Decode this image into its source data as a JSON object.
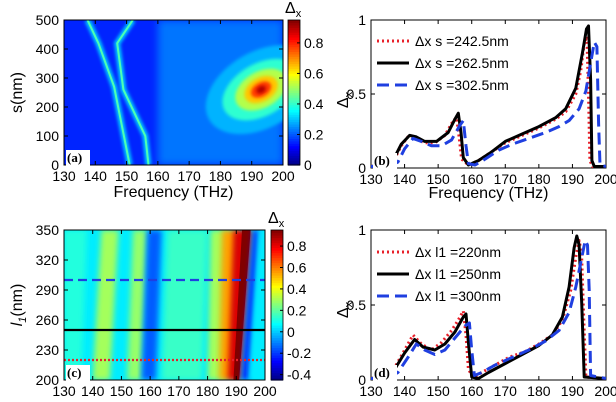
{
  "chart_data": [
    {
      "panel": "(a)",
      "type": "heatmap",
      "xlabel": "Frequency (THz)",
      "ylabel": "s(nm)",
      "xlim": [
        130,
        200
      ],
      "ylim": [
        0,
        500
      ],
      "xticks": [
        130,
        140,
        150,
        160,
        170,
        180,
        190,
        200
      ],
      "yticks": [
        0,
        100,
        200,
        300,
        400,
        500
      ],
      "colorbar": {
        "label": "Δx",
        "range": [
          0,
          0.95
        ],
        "ticks": [
          0,
          0.2,
          0.4,
          0.6,
          0.8
        ]
      },
      "features": [
        {
          "kind": "ridge",
          "points": [
            [
              137.5,
              500
            ],
            [
              141,
              420
            ],
            [
              146,
              270
            ],
            [
              151,
              0
            ]
          ]
        },
        {
          "kind": "ridge",
          "points": [
            [
              152,
              500
            ],
            [
              147,
              420
            ],
            [
              149,
              260
            ],
            [
              156,
              100
            ],
            [
              157,
              0
            ]
          ]
        },
        {
          "kind": "peak",
          "x": 193,
          "y": 260,
          "value": 0.92
        }
      ],
      "colormap": "jet",
      "grid": false
    },
    {
      "panel": "(b)",
      "type": "line",
      "xlabel": "Frequency (THz)",
      "ylabel": "Δx",
      "xlim": [
        130,
        200
      ],
      "ylim": [
        0,
        1
      ],
      "xticks": [
        130,
        140,
        150,
        160,
        170,
        180,
        190,
        200
      ],
      "yticks": [
        0,
        0.5,
        1
      ],
      "legend_position": "top-left",
      "series": [
        {
          "name": "Δx  s =242.5nm",
          "color": "#e8202a",
          "dash": "dotted",
          "points": [
            [
              130,
              0.01
            ],
            [
              134,
              0.02
            ],
            [
              137,
              0.06
            ],
            [
              139,
              0.15
            ],
            [
              141,
              0.21
            ],
            [
              143,
              0.2
            ],
            [
              146,
              0.17
            ],
            [
              149,
              0.17
            ],
            [
              152,
              0.22
            ],
            [
              154.5,
              0.32
            ],
            [
              155.5,
              0.34
            ],
            [
              156.3,
              0.2
            ],
            [
              157,
              0.06
            ],
            [
              159,
              0.02
            ],
            [
              162,
              0.05
            ],
            [
              166,
              0.11
            ],
            [
              170,
              0.17
            ],
            [
              175,
              0.22
            ],
            [
              180,
              0.27
            ],
            [
              185,
              0.33
            ],
            [
              188,
              0.38
            ],
            [
              191,
              0.5
            ],
            [
              192.5,
              0.66
            ],
            [
              193.5,
              0.84
            ],
            [
              194.3,
              0.89
            ],
            [
              194.8,
              0.5
            ],
            [
              195.2,
              0.05
            ],
            [
              196,
              0.01
            ],
            [
              200,
              0.01
            ]
          ]
        },
        {
          "name": "Δx  s =262.5nm",
          "color": "#000000",
          "dash": "solid",
          "points": [
            [
              130,
              0.01
            ],
            [
              134,
              0.02
            ],
            [
              137,
              0.07
            ],
            [
              139,
              0.16
            ],
            [
              141.5,
              0.22
            ],
            [
              143.5,
              0.21
            ],
            [
              146,
              0.18
            ],
            [
              149.5,
              0.18
            ],
            [
              153,
              0.24
            ],
            [
              155,
              0.33
            ],
            [
              156,
              0.37
            ],
            [
              156.8,
              0.24
            ],
            [
              157.5,
              0.07
            ],
            [
              159,
              0.02
            ],
            [
              162,
              0.05
            ],
            [
              166,
              0.11
            ],
            [
              170,
              0.18
            ],
            [
              175,
              0.23
            ],
            [
              180,
              0.28
            ],
            [
              185,
              0.34
            ],
            [
              188,
              0.4
            ],
            [
              191,
              0.54
            ],
            [
              193,
              0.78
            ],
            [
              194.2,
              0.94
            ],
            [
              194.8,
              0.96
            ],
            [
              195.4,
              0.6
            ],
            [
              195.8,
              0.05
            ],
            [
              196.5,
              0.01
            ],
            [
              200,
              0.01
            ]
          ]
        },
        {
          "name": "Δx  s =302.5nm",
          "color": "#1f3fe0",
          "dash": "dashed",
          "points": [
            [
              130,
              0.01
            ],
            [
              135,
              0.01
            ],
            [
              138,
              0.04
            ],
            [
              140,
              0.13
            ],
            [
              142.5,
              0.2
            ],
            [
              145,
              0.18
            ],
            [
              148,
              0.15
            ],
            [
              151,
              0.15
            ],
            [
              154,
              0.19
            ],
            [
              156.5,
              0.29
            ],
            [
              157.5,
              0.32
            ],
            [
              158.3,
              0.15
            ],
            [
              159,
              0.03
            ],
            [
              161,
              0.02
            ],
            [
              164,
              0.06
            ],
            [
              168,
              0.12
            ],
            [
              172,
              0.16
            ],
            [
              177,
              0.2
            ],
            [
              182,
              0.24
            ],
            [
              186,
              0.28
            ],
            [
              189,
              0.32
            ],
            [
              192,
              0.4
            ],
            [
              194,
              0.52
            ],
            [
              195.5,
              0.72
            ],
            [
              196.5,
              0.85
            ],
            [
              197.3,
              0.82
            ],
            [
              197.8,
              0.3
            ],
            [
              198.2,
              0.02
            ],
            [
              200,
              0.01
            ]
          ]
        }
      ],
      "grid": false
    },
    {
      "panel": "(c)",
      "type": "heatmap",
      "xlabel": "",
      "ylabel": "l1(nm)",
      "xlim": [
        130,
        200
      ],
      "ylim": [
        200,
        350
      ],
      "xticks": [
        130,
        140,
        150,
        160,
        170,
        180,
        190,
        200
      ],
      "yticks": [
        200,
        230,
        260,
        290,
        320,
        350
      ],
      "colorbar": {
        "label": "Δx",
        "range": [
          -0.45,
          0.95
        ],
        "ticks": [
          -0.4,
          -0.2,
          0,
          0.2,
          0.4,
          0.6,
          0.8
        ]
      },
      "hlines": [
        {
          "y": 300,
          "color": "#1f3fe0",
          "dash": "dashed"
        },
        {
          "y": 250,
          "color": "#000000",
          "dash": "solid"
        },
        {
          "y": 220,
          "color": "#e8202a",
          "dash": "dotted"
        }
      ],
      "colormap": "jet",
      "grid": false
    },
    {
      "panel": "(d)",
      "type": "line",
      "xlabel": "",
      "ylabel": "Δx",
      "xlim": [
        130,
        200
      ],
      "ylim": [
        0,
        1
      ],
      "xticks": [
        130,
        140,
        150,
        160,
        170,
        180,
        190,
        200
      ],
      "yticks": [
        0,
        0.5,
        1
      ],
      "legend_position": "top-left",
      "series": [
        {
          "name": "Δx  l1 =220nm",
          "color": "#e8202a",
          "dash": "dotted",
          "points": [
            [
              130,
              0.01
            ],
            [
              134,
              0.02
            ],
            [
              137,
              0.08
            ],
            [
              140,
              0.2
            ],
            [
              142.5,
              0.3
            ],
            [
              145,
              0.24
            ],
            [
              148,
              0.2
            ],
            [
              151,
              0.25
            ],
            [
              154,
              0.33
            ],
            [
              156,
              0.4
            ],
            [
              157.5,
              0.46
            ],
            [
              158.3,
              0.3
            ],
            [
              159,
              0.07
            ],
            [
              160.5,
              0.02
            ],
            [
              163,
              0.05
            ],
            [
              167,
              0.1
            ],
            [
              171,
              0.15
            ],
            [
              176,
              0.19
            ],
            [
              180,
              0.24
            ],
            [
              184,
              0.3
            ],
            [
              187,
              0.4
            ],
            [
              189.5,
              0.6
            ],
            [
              191,
              0.82
            ],
            [
              192,
              0.93
            ],
            [
              192.7,
              0.85
            ],
            [
              193.4,
              0.4
            ],
            [
              194,
              0.02
            ],
            [
              200,
              0.01
            ]
          ]
        },
        {
          "name": "Δx  l1 =250nm",
          "color": "#000000",
          "dash": "solid",
          "points": [
            [
              130,
              0.01
            ],
            [
              134,
              0.02
            ],
            [
              137,
              0.07
            ],
            [
              140,
              0.18
            ],
            [
              143,
              0.27
            ],
            [
              145.5,
              0.22
            ],
            [
              149,
              0.2
            ],
            [
              152,
              0.24
            ],
            [
              155,
              0.32
            ],
            [
              157.5,
              0.42
            ],
            [
              158.3,
              0.44
            ],
            [
              159,
              0.25
            ],
            [
              160,
              0.02
            ],
            [
              162,
              0.01
            ],
            [
              165,
              0.05
            ],
            [
              170,
              0.11
            ],
            [
              175,
              0.17
            ],
            [
              180,
              0.23
            ],
            [
              184,
              0.3
            ],
            [
              187,
              0.42
            ],
            [
              189,
              0.62
            ],
            [
              190.5,
              0.88
            ],
            [
              191.3,
              0.96
            ],
            [
              192,
              0.9
            ],
            [
              192.8,
              0.5
            ],
            [
              193.5,
              0.02
            ],
            [
              200,
              0.01
            ]
          ]
        },
        {
          "name": "Δx  l1 =300nm",
          "color": "#1f3fe0",
          "dash": "dashed",
          "points": [
            [
              130,
              0.01
            ],
            [
              135,
              0.01
            ],
            [
              138,
              0.05
            ],
            [
              141,
              0.15
            ],
            [
              143.5,
              0.24
            ],
            [
              146,
              0.2
            ],
            [
              149,
              0.17
            ],
            [
              152,
              0.2
            ],
            [
              155,
              0.28
            ],
            [
              158,
              0.36
            ],
            [
              159.3,
              0.38
            ],
            [
              160,
              0.2
            ],
            [
              160.8,
              0.03
            ],
            [
              163,
              0.05
            ],
            [
              167,
              0.1
            ],
            [
              172,
              0.15
            ],
            [
              177,
              0.2
            ],
            [
              182,
              0.26
            ],
            [
              186,
              0.33
            ],
            [
              189,
              0.45
            ],
            [
              191,
              0.62
            ],
            [
              193,
              0.84
            ],
            [
              193.8,
              0.93
            ],
            [
              194.5,
              0.9
            ],
            [
              195,
              0.6
            ],
            [
              195.4,
              0.03
            ],
            [
              200,
              0.01
            ]
          ]
        }
      ],
      "grid": false
    }
  ]
}
